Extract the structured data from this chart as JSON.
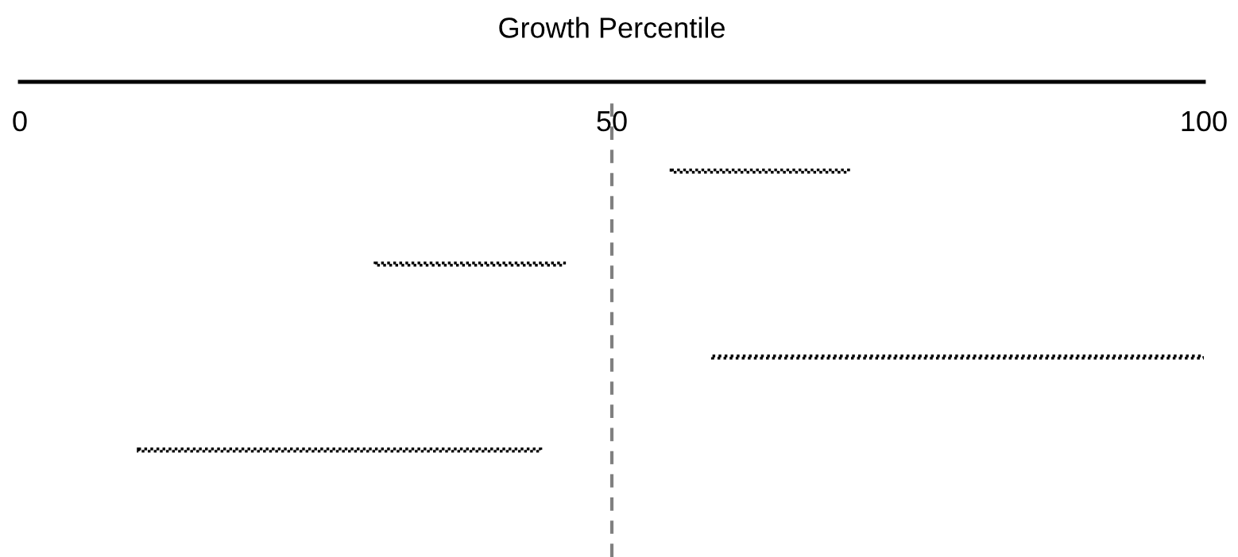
{
  "chart_data": {
    "type": "bar",
    "orientation": "horizontal",
    "xlabel": "Growth Percentile",
    "categories": [
      null,
      null,
      null,
      null
    ],
    "base": [
      55,
      30,
      58.5,
      10
    ],
    "values": [
      15,
      16,
      41.5,
      34
    ],
    "color": "#000000",
    "line_style": "dotted",
    "xlim": [
      0,
      100
    ],
    "xticks": [
      0,
      50,
      100
    ],
    "ref_lines": [
      {
        "axis": "x",
        "value": 50,
        "color": "#808080",
        "line_style": "dashed"
      }
    ],
    "tick_labels": "x",
    "grid": false,
    "legend": false
  }
}
